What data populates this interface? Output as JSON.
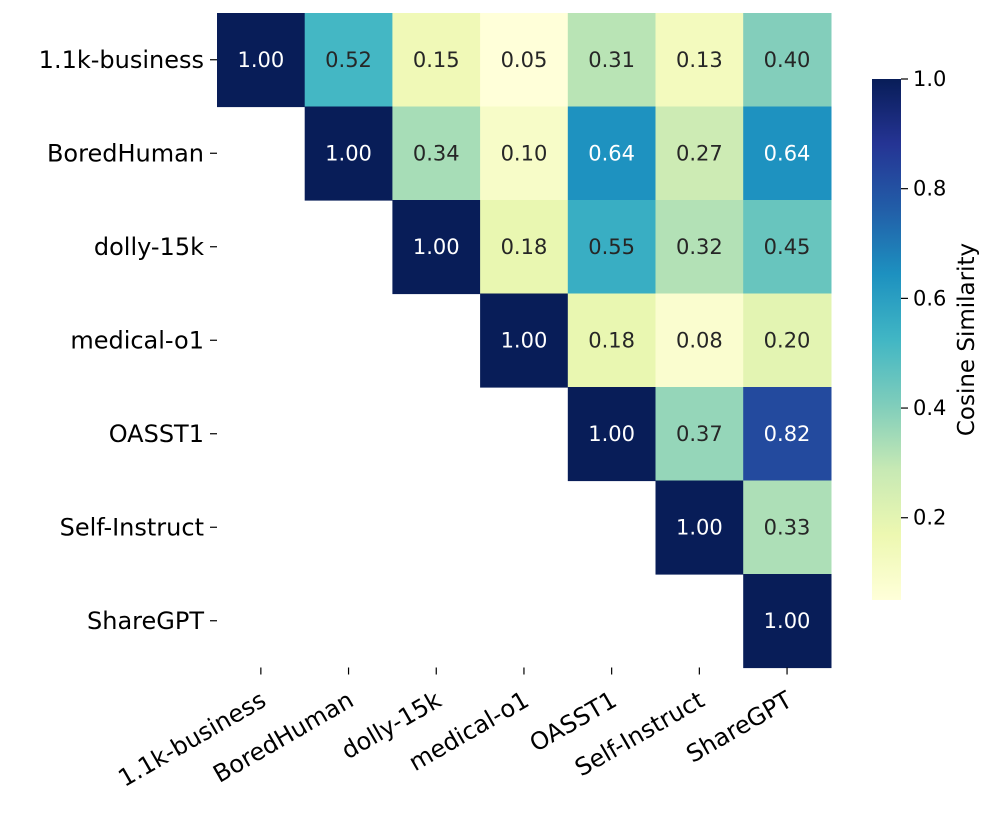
{
  "chart_data": {
    "type": "heatmap",
    "title": "",
    "xlabel": "",
    "ylabel": "",
    "x_categories": [
      "1.1k-business",
      "BoredHuman",
      "dolly-15k",
      "medical-o1",
      "OASST1",
      "Self-Instruct",
      "ShareGPT"
    ],
    "y_categories": [
      "1.1k-business",
      "BoredHuman",
      "dolly-15k",
      "medical-o1",
      "OASST1",
      "Self-Instruct",
      "ShareGPT"
    ],
    "matrix": [
      [
        1.0,
        0.52,
        0.15,
        0.05,
        0.31,
        0.13,
        0.4
      ],
      [
        null,
        1.0,
        0.34,
        0.1,
        0.64,
        0.27,
        0.64
      ],
      [
        null,
        null,
        1.0,
        0.18,
        0.55,
        0.32,
        0.45
      ],
      [
        null,
        null,
        null,
        1.0,
        0.18,
        0.08,
        0.2
      ],
      [
        null,
        null,
        null,
        null,
        1.0,
        0.37,
        0.82
      ],
      [
        null,
        null,
        null,
        null,
        null,
        1.0,
        0.33
      ],
      [
        null,
        null,
        null,
        null,
        null,
        null,
        1.0
      ]
    ],
    "value_format": "0.00",
    "mask": "lower-triangle",
    "colormap": "YlGnBu",
    "colorbar": {
      "label": "Cosine Similarity",
      "range": [
        0.05,
        1.0
      ],
      "ticks": [
        0.2,
        0.4,
        0.6,
        0.8,
        1.0
      ],
      "tick_labels": [
        "0.2",
        "0.4",
        "0.6",
        "0.8",
        "1.0"
      ],
      "placement": "right"
    }
  }
}
